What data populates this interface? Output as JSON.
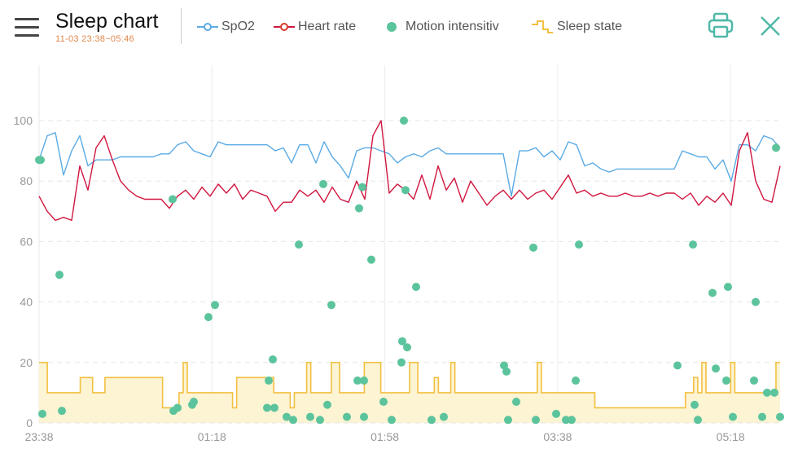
{
  "header": {
    "title": "Sleep chart",
    "subtitle": "11-03 23:38~05:46",
    "menu_icon": "hamburger-menu-icon",
    "print_icon": "printer-icon",
    "close_icon": "close-x-icon"
  },
  "legend": [
    {
      "label": "SpO2",
      "color": "#5aabe4",
      "symbol": "line-circle"
    },
    {
      "label": "Heart rate",
      "color": "#d0163f",
      "symbol": "line-circle"
    },
    {
      "label": "Motion intensitiv",
      "color": "#5cc49c",
      "symbol": "dot"
    },
    {
      "label": "Sleep state",
      "color": "#f2c040",
      "symbol": "step"
    }
  ],
  "colors": {
    "accent": "#4fb8a8",
    "subtitle": "#e0874a",
    "sleep_fill": "#fdf4d4"
  },
  "chart_data": {
    "type": "line",
    "grid": true,
    "ylim": [
      0,
      110
    ],
    "y_ticks": [
      "0",
      "20",
      "40",
      "60",
      "80",
      "100"
    ],
    "x_tick_labels": [
      "23:38",
      "01:18",
      "01:58",
      "03:38",
      "05:18"
    ],
    "series": [
      {
        "name": "SpO2",
        "type": "line",
        "color": "#5aabe4",
        "values": [
          87,
          95,
          96,
          82,
          90,
          95,
          85,
          87,
          87,
          87,
          88,
          88,
          88,
          88,
          88,
          89,
          89,
          92,
          93,
          90,
          89,
          88,
          93,
          92,
          92,
          92,
          92,
          92,
          92,
          90,
          91,
          86,
          92,
          92,
          86,
          93,
          88,
          85,
          81,
          90,
          91,
          91,
          90,
          89,
          86,
          88,
          89,
          88,
          90,
          91,
          89,
          89,
          89,
          89,
          89,
          89,
          89,
          89,
          75,
          90,
          90,
          91,
          88,
          90,
          87,
          93,
          92,
          85,
          86,
          84,
          83,
          84,
          84,
          84,
          84,
          84,
          84,
          84,
          84,
          90,
          89,
          88,
          88,
          84,
          87,
          80,
          92,
          92,
          90,
          95,
          94,
          91
        ]
      },
      {
        "name": "Heart rate",
        "type": "line",
        "color": "#d0163f",
        "values": [
          75,
          70,
          67,
          68,
          67,
          85,
          77,
          91,
          95,
          87,
          80,
          77,
          75,
          74,
          74,
          74,
          71,
          75,
          77,
          74,
          78,
          75,
          79,
          76,
          79,
          74,
          77,
          76,
          75,
          70,
          73,
          73,
          77,
          75,
          77,
          73,
          78,
          74,
          73,
          80,
          74,
          95,
          100,
          76,
          79,
          77,
          74,
          82,
          74,
          85,
          77,
          81,
          73,
          80,
          76,
          72,
          75,
          77,
          74,
          77,
          74,
          76,
          77,
          74,
          78,
          82,
          76,
          77,
          75,
          76,
          75,
          75,
          76,
          75,
          75,
          76,
          75,
          76,
          76,
          74,
          76,
          72,
          75,
          73,
          76,
          72,
          90,
          96,
          80,
          74,
          73,
          85
        ]
      },
      {
        "name": "Motion intensitiv",
        "type": "scatter",
        "color": "#5cc49c",
        "points": [
          [
            0,
            87
          ],
          [
            0.2,
            87
          ],
          [
            0.4,
            3
          ],
          [
            2.5,
            49
          ],
          [
            2.8,
            4
          ],
          [
            16.4,
            74
          ],
          [
            16.5,
            4
          ],
          [
            17,
            5
          ],
          [
            18.8,
            6
          ],
          [
            19,
            7
          ],
          [
            20.8,
            35
          ],
          [
            21.6,
            39
          ],
          [
            28.2,
            14
          ],
          [
            28.7,
            21
          ],
          [
            28,
            5
          ],
          [
            28.9,
            5
          ],
          [
            30.4,
            2
          ],
          [
            31.2,
            1
          ],
          [
            31.9,
            59
          ],
          [
            33.3,
            2
          ],
          [
            34.5,
            1
          ],
          [
            34.9,
            79
          ],
          [
            35.4,
            6
          ],
          [
            35.9,
            39
          ],
          [
            37.8,
            2
          ],
          [
            39.1,
            14
          ],
          [
            39.3,
            71
          ],
          [
            39.7,
            78
          ],
          [
            39.9,
            14
          ],
          [
            39.9,
            2
          ],
          [
            40.8,
            54
          ],
          [
            42.3,
            7
          ],
          [
            43.3,
            1
          ],
          [
            44.5,
            20
          ],
          [
            44.6,
            27
          ],
          [
            44.8,
            100
          ],
          [
            45,
            77
          ],
          [
            45.2,
            25
          ],
          [
            46.3,
            45
          ],
          [
            48.2,
            1
          ],
          [
            49.7,
            2
          ],
          [
            57.1,
            19
          ],
          [
            57.4,
            17
          ],
          [
            57.6,
            1
          ],
          [
            58.6,
            7
          ],
          [
            60.7,
            58
          ],
          [
            61,
            1
          ],
          [
            63.5,
            3
          ],
          [
            64.7,
            1
          ],
          [
            65.4,
            1
          ],
          [
            65.9,
            14
          ],
          [
            66.3,
            59
          ],
          [
            78.4,
            19
          ],
          [
            80.3,
            59
          ],
          [
            80.5,
            6
          ],
          [
            80.9,
            1
          ],
          [
            82.7,
            43
          ],
          [
            83.1,
            18
          ],
          [
            84.4,
            14
          ],
          [
            84.6,
            45
          ],
          [
            85.2,
            2
          ],
          [
            87.8,
            14
          ],
          [
            88,
            40
          ],
          [
            88.8,
            2
          ],
          [
            89.4,
            10
          ],
          [
            90.3,
            10
          ],
          [
            90.5,
            91
          ],
          [
            91,
            2
          ]
        ]
      },
      {
        "name": "Sleep state",
        "type": "step",
        "color": "#f2c040",
        "runs": [
          [
            20,
            2
          ],
          [
            10,
            8
          ],
          [
            15,
            3
          ],
          [
            10,
            3
          ],
          [
            15,
            14
          ],
          [
            5,
            4
          ],
          [
            10,
            1
          ],
          [
            20,
            1
          ],
          [
            10,
            11
          ],
          [
            5,
            1
          ],
          [
            15,
            9
          ],
          [
            10,
            4
          ],
          [
            5,
            1
          ],
          [
            10,
            3
          ],
          [
            20,
            1
          ],
          [
            10,
            5
          ],
          [
            20,
            2
          ],
          [
            10,
            6
          ],
          [
            20,
            4
          ],
          [
            10,
            7
          ],
          [
            20,
            2
          ],
          [
            10,
            4
          ],
          [
            15,
            1
          ],
          [
            10,
            3
          ],
          [
            20,
            1
          ],
          [
            10,
            20
          ],
          [
            20,
            1
          ],
          [
            10,
            13
          ],
          [
            5,
            22
          ],
          [
            10,
            2
          ],
          [
            15,
            1
          ],
          [
            10,
            1
          ],
          [
            20,
            1
          ],
          [
            10,
            6
          ],
          [
            20,
            1
          ],
          [
            10,
            10
          ],
          [
            20,
            1
          ]
        ]
      }
    ]
  }
}
